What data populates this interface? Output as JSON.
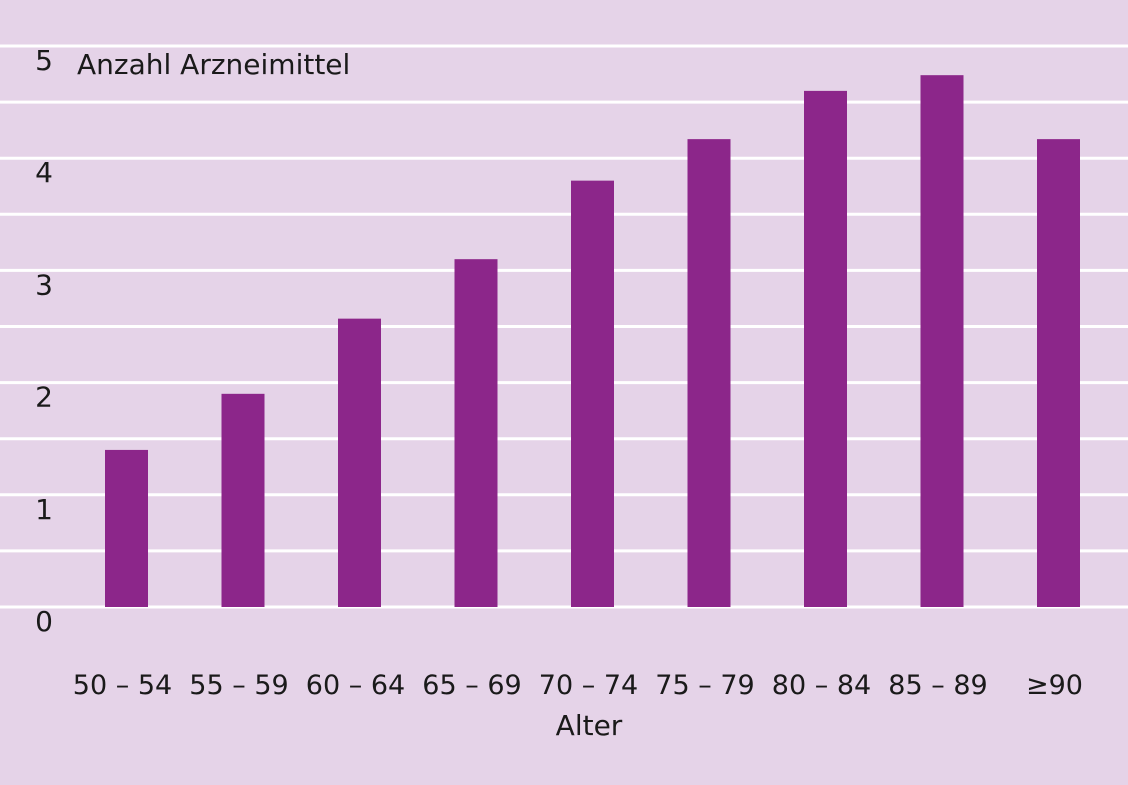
{
  "colors": {
    "background": "#e5d3e8",
    "grid": "#ffffff",
    "bar": "#8c268a",
    "text": "#1a1a1a"
  },
  "chart_data": {
    "type": "bar",
    "title": "",
    "ylabel": "Anzahl Arzneimittel",
    "xlabel": "Alter",
    "categories": [
      "50 – 54",
      "55 – 59",
      "60 – 64",
      "65 – 69",
      "70 – 74",
      "75 – 79",
      "80 – 84",
      "85 – 89",
      "≥90"
    ],
    "values": [
      1.4,
      1.9,
      2.57,
      3.1,
      3.8,
      4.17,
      4.6,
      4.74,
      4.17
    ],
    "ylim": [
      0,
      5
    ],
    "yticks": [
      0,
      1,
      2,
      3,
      4,
      5
    ],
    "grid": true,
    "legend": "none"
  }
}
